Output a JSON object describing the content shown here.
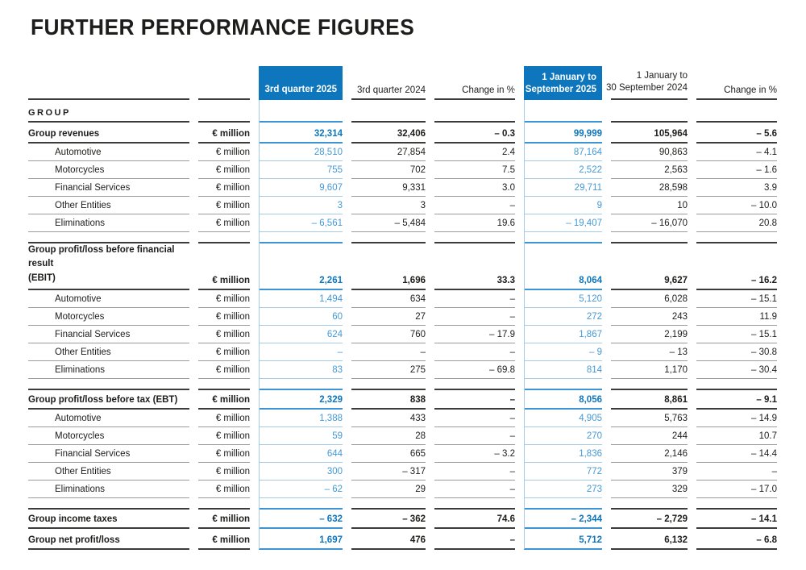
{
  "title": "FURTHER PERFORMANCE FIGURES",
  "colors": {
    "header_blue": "#0d76bc",
    "blue_value_text": "#4599d5",
    "dark_text": "#1d1d1b",
    "dark_line": "#3c3c3b",
    "gray_line": "#9c9b9b",
    "light_blue_line": "#a6cbe7",
    "medium_blue_line": "#3e94d2"
  },
  "table": {
    "headers": {
      "q3_2025": "3rd quarter 2025",
      "q3_2024": "3rd quarter 2024",
      "change_q3": "Change in %",
      "ytd25_l1": "1 January to",
      "ytd25_l2": "30 September 2025",
      "ytd24_l1": "1 January to",
      "ytd24_l2": "30 September 2024",
      "change_ytd": "Change in %"
    },
    "section_label": "GROUP",
    "rows": [
      {
        "label": "Group revenues",
        "unit": "€ million",
        "type": "bold",
        "values": [
          "32,314",
          "32,406",
          "– 0.3",
          "99,999",
          "105,964",
          "– 5.6"
        ]
      },
      {
        "label": "Automotive",
        "unit": "€ million",
        "type": "sub",
        "values": [
          "28,510",
          "27,854",
          "2.4",
          "87,164",
          "90,863",
          "– 4.1"
        ]
      },
      {
        "label": "Motorcycles",
        "unit": "€ million",
        "type": "sub",
        "values": [
          "755",
          "702",
          "7.5",
          "2,522",
          "2,563",
          "– 1.6"
        ]
      },
      {
        "label": "Financial Services",
        "unit": "€ million",
        "type": "sub",
        "values": [
          "9,607",
          "9,331",
          "3.0",
          "29,711",
          "28,598",
          "3.9"
        ]
      },
      {
        "label": "Other Entities",
        "unit": "€ million",
        "type": "sub",
        "values": [
          "3",
          "3",
          "–",
          "9",
          "10",
          "– 10.0"
        ]
      },
      {
        "label": "Eliminations",
        "unit": "€ million",
        "type": "sub",
        "values": [
          "– 6,561",
          "– 5,484",
          "19.6",
          "– 19,407",
          "– 16,070",
          "20.8"
        ]
      },
      {
        "label": "Group profit/loss before financial result\n(EBIT)",
        "unit": "€ million",
        "type": "bold",
        "spacer_before": true,
        "top_border": true,
        "tall": true,
        "values": [
          "2,261",
          "1,696",
          "33.3",
          "8,064",
          "9,627",
          "– 16.2"
        ]
      },
      {
        "label": "Automotive",
        "unit": "€ million",
        "type": "sub",
        "values": [
          "1,494",
          "634",
          "–",
          "5,120",
          "6,028",
          "– 15.1"
        ]
      },
      {
        "label": "Motorcycles",
        "unit": "€ million",
        "type": "sub",
        "values": [
          "60",
          "27",
          "–",
          "272",
          "243",
          "11.9"
        ]
      },
      {
        "label": "Financial Services",
        "unit": "€ million",
        "type": "sub",
        "values": [
          "624",
          "760",
          "– 17.9",
          "1,867",
          "2,199",
          "– 15.1"
        ]
      },
      {
        "label": "Other Entities",
        "unit": "€ million",
        "type": "sub",
        "values": [
          "–",
          "–",
          "–",
          "– 9",
          "– 13",
          "– 30.8"
        ]
      },
      {
        "label": "Eliminations",
        "unit": "€ million",
        "type": "sub",
        "values": [
          "83",
          "275",
          "– 69.8",
          "814",
          "1,170",
          "– 30.4"
        ]
      },
      {
        "label": "Group profit/loss before tax (EBT)",
        "unit": "€ million",
        "type": "bold",
        "spacer_before": true,
        "top_border": true,
        "values": [
          "2,329",
          "838",
          "–",
          "8,056",
          "8,861",
          "– 9.1"
        ]
      },
      {
        "label": "Automotive",
        "unit": "€ million",
        "type": "sub",
        "values": [
          "1,388",
          "433",
          "–",
          "4,905",
          "5,763",
          "– 14.9"
        ]
      },
      {
        "label": "Motorcycles",
        "unit": "€ million",
        "type": "sub",
        "values": [
          "59",
          "28",
          "–",
          "270",
          "244",
          "10.7"
        ]
      },
      {
        "label": "Financial Services",
        "unit": "€ million",
        "type": "sub",
        "values": [
          "644",
          "665",
          "– 3.2",
          "1,836",
          "2,146",
          "– 14.4"
        ]
      },
      {
        "label": "Other Entities",
        "unit": "€ million",
        "type": "sub",
        "values": [
          "300",
          "– 317",
          "–",
          "772",
          "379",
          "–"
        ]
      },
      {
        "label": "Eliminations",
        "unit": "€ million",
        "type": "sub",
        "values": [
          "– 62",
          "29",
          "–",
          "273",
          "329",
          "– 17.0"
        ]
      },
      {
        "label": "Group income taxes",
        "unit": "€ million",
        "type": "bold",
        "spacer_before": true,
        "top_border": true,
        "values": [
          "– 632",
          "– 362",
          "74.6",
          "– 2,344",
          "– 2,729",
          "– 14.1"
        ]
      },
      {
        "label": "Group net profit/loss",
        "unit": "€ million",
        "type": "bold",
        "values": [
          "1,697",
          "476",
          "–",
          "5,712",
          "6,132",
          "– 6.8"
        ]
      }
    ]
  }
}
